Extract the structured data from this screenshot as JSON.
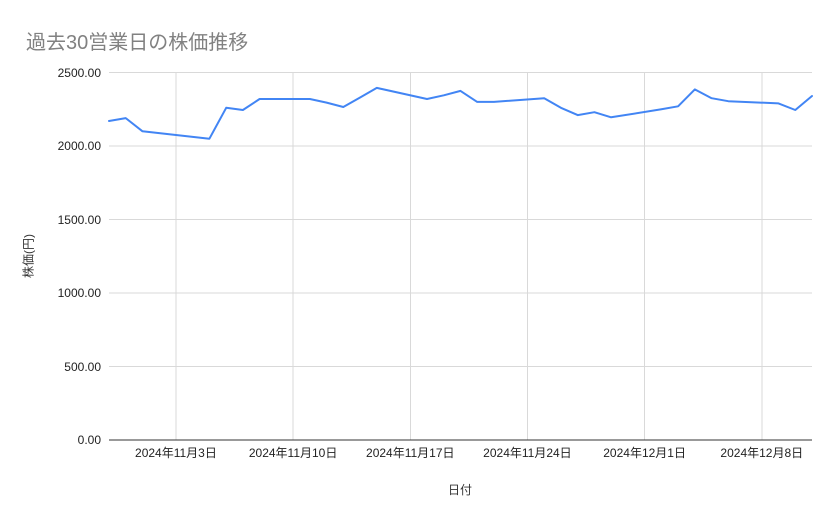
{
  "chart": {
    "title": "過去30営業日の株価推移",
    "ylabel": "株価(円)",
    "xlabel": "日付"
  },
  "colors": {
    "series": "#4285f4",
    "grid": "#d9d9d9",
    "axis": "#333333",
    "title": "#818181",
    "tick_label": "#222222"
  },
  "chart_data": {
    "type": "line",
    "title": "過去30営業日の株価推移",
    "xlabel": "日付",
    "ylabel": "株価(円)",
    "legend": "none",
    "grid": "on",
    "ylim": [
      0,
      2500
    ],
    "x_axis_day_range": [
      0,
      42
    ],
    "y_ticks": [
      {
        "value": 0,
        "label": "0.00"
      },
      {
        "value": 500,
        "label": "500.00"
      },
      {
        "value": 1000,
        "label": "1000.00"
      },
      {
        "value": 1500,
        "label": "1500.00"
      },
      {
        "value": 2000,
        "label": "2000.00"
      },
      {
        "value": 2500,
        "label": "2500.00"
      }
    ],
    "x_ticks": [
      {
        "day": 4,
        "label": "2024年11月3日"
      },
      {
        "day": 11,
        "label": "2024年11月10日"
      },
      {
        "day": 18,
        "label": "2024年11月17日"
      },
      {
        "day": 25,
        "label": "2024年11月24日"
      },
      {
        "day": 32,
        "label": "2024年12月1日"
      },
      {
        "day": 39,
        "label": "2024年12月8日"
      }
    ],
    "points": [
      {
        "date": "2024-10-30",
        "day": 0,
        "value": 2170
      },
      {
        "date": "2024-10-31",
        "day": 1,
        "value": 2190
      },
      {
        "date": "2024-11-01",
        "day": 2,
        "value": 2100
      },
      {
        "date": "2024-11-05",
        "day": 6,
        "value": 2050
      },
      {
        "date": "2024-11-06",
        "day": 7,
        "value": 2260
      },
      {
        "date": "2024-11-07",
        "day": 8,
        "value": 2245
      },
      {
        "date": "2024-11-08",
        "day": 9,
        "value": 2320
      },
      {
        "date": "2024-11-11",
        "day": 12,
        "value": 2320
      },
      {
        "date": "2024-11-12",
        "day": 13,
        "value": 2295
      },
      {
        "date": "2024-11-13",
        "day": 14,
        "value": 2265
      },
      {
        "date": "2024-11-14",
        "day": 15,
        "value": 2330
      },
      {
        "date": "2024-11-15",
        "day": 16,
        "value": 2395
      },
      {
        "date": "2024-11-18",
        "day": 19,
        "value": 2320
      },
      {
        "date": "2024-11-19",
        "day": 20,
        "value": 2345
      },
      {
        "date": "2024-11-20",
        "day": 21,
        "value": 2375
      },
      {
        "date": "2024-11-21",
        "day": 22,
        "value": 2300
      },
      {
        "date": "2024-11-22",
        "day": 23,
        "value": 2300
      },
      {
        "date": "2024-11-25",
        "day": 26,
        "value": 2325
      },
      {
        "date": "2024-11-26",
        "day": 27,
        "value": 2260
      },
      {
        "date": "2024-11-27",
        "day": 28,
        "value": 2210
      },
      {
        "date": "2024-11-28",
        "day": 29,
        "value": 2230
      },
      {
        "date": "2024-11-29",
        "day": 30,
        "value": 2195
      },
      {
        "date": "2024-12-02",
        "day": 33,
        "value": 2250
      },
      {
        "date": "2024-12-03",
        "day": 34,
        "value": 2270
      },
      {
        "date": "2024-12-04",
        "day": 35,
        "value": 2385
      },
      {
        "date": "2024-12-05",
        "day": 36,
        "value": 2325
      },
      {
        "date": "2024-12-06",
        "day": 37,
        "value": 2305
      },
      {
        "date": "2024-12-09",
        "day": 40,
        "value": 2290
      },
      {
        "date": "2024-12-10",
        "day": 41,
        "value": 2245
      },
      {
        "date": "2024-12-11",
        "day": 42,
        "value": 2340
      }
    ]
  }
}
